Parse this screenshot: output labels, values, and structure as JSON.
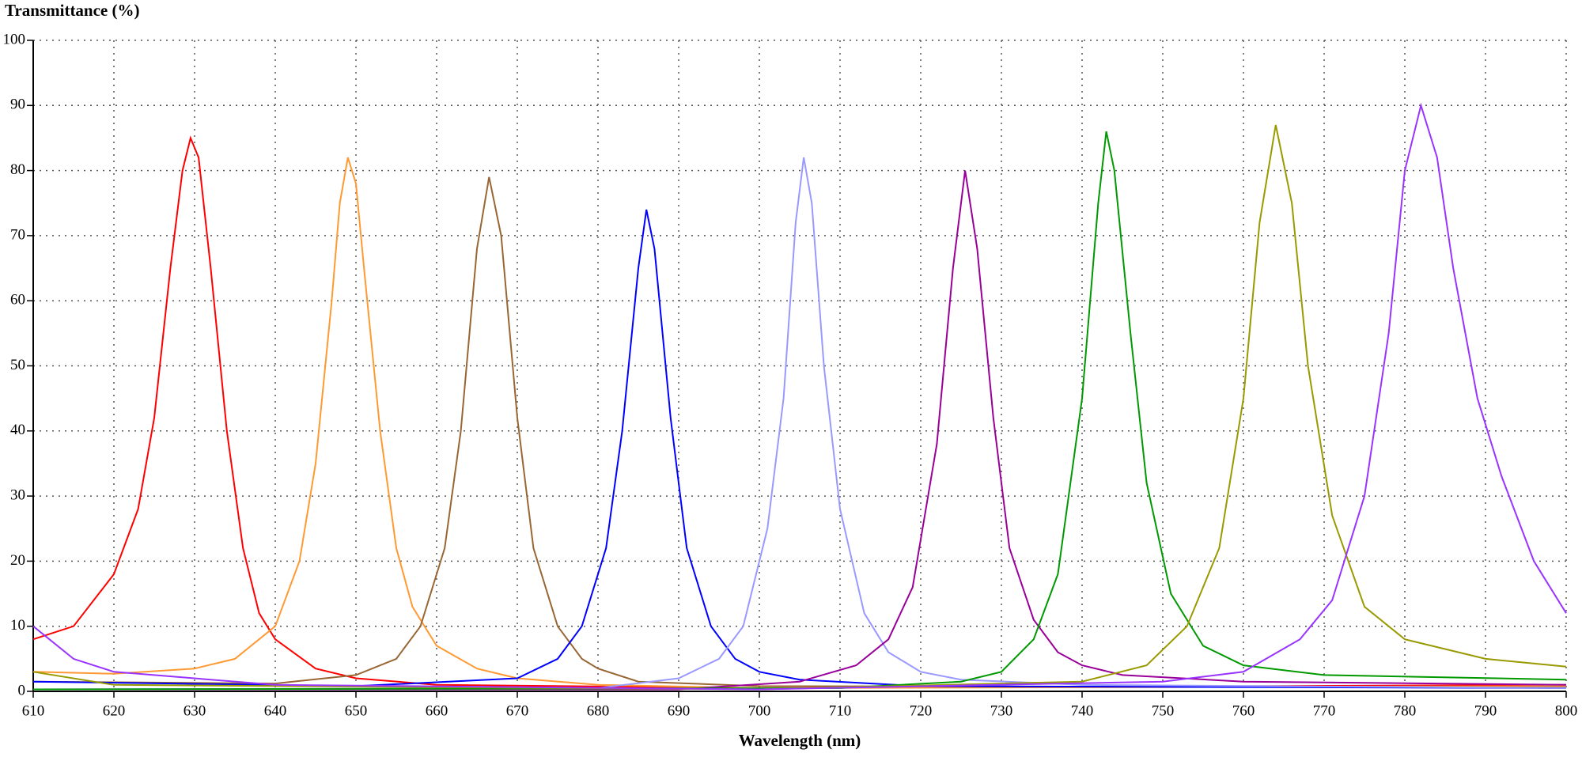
{
  "chart_data": {
    "type": "line",
    "y_label": "Transmittance (%)",
    "x_label": "Wavelength (nm)",
    "xlim": [
      610,
      800
    ],
    "xticks": [
      610,
      620,
      630,
      640,
      650,
      660,
      670,
      680,
      690,
      700,
      710,
      720,
      730,
      740,
      750,
      760,
      770,
      780,
      790,
      800
    ],
    "ylim": [
      0,
      100
    ],
    "yticks": [
      0,
      10,
      20,
      30,
      40,
      50,
      60,
      70,
      80,
      90,
      100
    ],
    "grid": true,
    "series": [
      {
        "color": "#ff0000",
        "x": [
          610,
          615,
          620,
          623,
          625,
          627,
          628.5,
          629.5,
          630.5,
          632,
          634,
          636,
          638,
          640,
          645,
          650,
          660,
          700,
          800
        ],
        "values": [
          8,
          10,
          18,
          28,
          42,
          65,
          80,
          85,
          82,
          65,
          40,
          22,
          12,
          8,
          3.5,
          2,
          1,
          0.5,
          1
        ]
      },
      {
        "color": "#ff9933",
        "x": [
          610,
          620,
          630,
          635,
          640,
          643,
          645,
          647,
          648,
          649,
          650,
          651,
          653,
          655,
          657,
          660,
          665,
          670,
          680,
          700,
          800
        ],
        "values": [
          3,
          2.7,
          3.5,
          5,
          10,
          20,
          35,
          60,
          75,
          82,
          78,
          65,
          40,
          22,
          13,
          7,
          3.5,
          2,
          1,
          0.5,
          0.8
        ]
      },
      {
        "color": "#996633",
        "x": [
          610,
          640,
          650,
          655,
          658,
          661,
          663,
          665,
          666.5,
          668,
          670,
          672,
          675,
          678,
          680,
          685,
          700,
          800
        ],
        "values": [
          1.5,
          1.2,
          2.5,
          5,
          10,
          22,
          40,
          68,
          79,
          70,
          42,
          22,
          10,
          5,
          3.5,
          1.5,
          0.8,
          0.6
        ]
      },
      {
        "color": "#0000ff",
        "x": [
          610,
          650,
          670,
          675,
          678,
          681,
          683,
          685,
          686,
          687,
          689,
          691,
          694,
          697,
          700,
          705,
          720,
          800
        ],
        "values": [
          1.5,
          0.8,
          2,
          5,
          10,
          22,
          40,
          65,
          74,
          68,
          42,
          22,
          10,
          5,
          3,
          1.8,
          0.8,
          0.5
        ]
      },
      {
        "color": "#9999ff",
        "x": [
          610,
          680,
          690,
          695,
          698,
          701,
          703,
          704.5,
          705.5,
          706.5,
          708,
          710,
          713,
          716,
          720,
          725,
          740,
          800
        ],
        "values": [
          0.3,
          0.5,
          2,
          5,
          10,
          25,
          45,
          72,
          82,
          75,
          50,
          28,
          12,
          6,
          3,
          1.8,
          1,
          0.5
        ]
      },
      {
        "color": "#990099",
        "x": [
          610,
          690,
          705,
          712,
          716,
          719,
          722,
          724,
          725.5,
          727,
          729,
          731,
          734,
          737,
          740,
          745,
          760,
          800
        ],
        "values": [
          0.3,
          0.3,
          1.5,
          4,
          8,
          16,
          38,
          65,
          80,
          68,
          42,
          22,
          11,
          6,
          4,
          2.5,
          1.5,
          1
        ]
      },
      {
        "color": "#009900",
        "x": [
          610,
          710,
          725,
          730,
          734,
          737,
          740,
          742,
          743,
          744,
          746,
          748,
          751,
          755,
          760,
          770,
          800
        ],
        "values": [
          0.3,
          0.5,
          1.5,
          3,
          8,
          18,
          45,
          75,
          86,
          80,
          55,
          32,
          15,
          7,
          4,
          2.5,
          1.8
        ]
      },
      {
        "color": "#999900",
        "x": [
          610,
          620,
          700,
          740,
          748,
          753,
          757,
          760,
          762,
          764,
          766,
          768,
          771,
          775,
          780,
          790,
          800
        ],
        "values": [
          3,
          1,
          0.3,
          1.5,
          4,
          10,
          22,
          45,
          72,
          87,
          75,
          50,
          27,
          13,
          8,
          5,
          3.8
        ]
      },
      {
        "color": "#9933ff",
        "x": [
          610,
          615,
          620,
          640,
          700,
          750,
          760,
          767,
          771,
          775,
          778,
          780,
          782,
          784,
          786,
          789,
          792,
          796,
          800
        ],
        "values": [
          10,
          5,
          3,
          1,
          0.3,
          1.5,
          3,
          8,
          14,
          30,
          55,
          80,
          90,
          82,
          65,
          45,
          33,
          20,
          12
        ]
      }
    ]
  }
}
